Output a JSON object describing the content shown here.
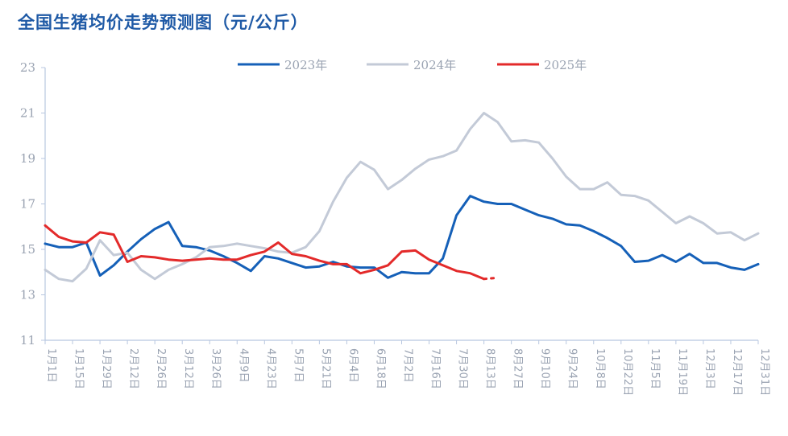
{
  "chart_data": {
    "type": "line",
    "title": "全国生猪均价走势预测图（元/公斤）",
    "ylim": [
      11,
      23
    ],
    "y_ticks": [
      11,
      13,
      15,
      17,
      19,
      21,
      23
    ],
    "legend_position": "top-center",
    "grid": false,
    "x_tick_labels": [
      "1月1日",
      "1月15日",
      "1月29日",
      "2月12日",
      "2月26日",
      "3月12日",
      "3月26日",
      "4月9日",
      "4月23日",
      "5月7日",
      "5月21日",
      "6月4日",
      "6月18日",
      "7月2日",
      "7月16日",
      "7月30日",
      "8月13日",
      "8月27日",
      "9月10日",
      "9月24日",
      "10月8日",
      "10月22日",
      "11月5日",
      "11月19日",
      "12月3日",
      "12月17日",
      "12月31日"
    ],
    "x_points": 53,
    "series": [
      {
        "name": "2023年",
        "color": "#1560b8",
        "values": [
          15.25,
          15.1,
          15.1,
          15.3,
          13.85,
          14.3,
          14.9,
          15.45,
          15.9,
          16.2,
          15.15,
          15.1,
          14.95,
          14.7,
          14.4,
          14.05,
          14.7,
          14.6,
          14.4,
          14.2,
          14.25,
          14.45,
          14.25,
          14.2,
          14.2,
          13.75,
          14.0,
          13.95,
          13.95,
          14.6,
          16.5,
          17.35,
          17.1,
          17.0,
          17.0,
          16.75,
          16.5,
          16.35,
          16.1,
          16.05,
          15.8,
          15.5,
          15.15,
          14.45,
          14.5,
          14.75,
          14.45,
          14.8,
          14.4,
          14.4,
          14.2,
          14.1,
          14.35
        ]
      },
      {
        "name": "2024年",
        "color": "#c3cad7",
        "values": [
          14.1,
          13.7,
          13.6,
          14.15,
          15.4,
          14.75,
          14.85,
          14.1,
          13.7,
          14.1,
          14.35,
          14.65,
          15.1,
          15.15,
          15.25,
          15.15,
          15.05,
          14.9,
          14.85,
          15.1,
          15.8,
          17.1,
          18.15,
          18.85,
          18.5,
          17.65,
          18.05,
          18.55,
          18.95,
          19.1,
          19.35,
          20.3,
          21.0,
          20.6,
          19.75,
          19.8,
          19.7,
          19.0,
          18.2,
          17.65,
          17.65,
          17.95,
          17.4,
          17.35,
          17.15,
          16.65,
          16.15,
          16.45,
          16.15,
          15.7,
          15.75,
          15.4,
          15.7
        ]
      },
      {
        "name": "2025年",
        "color": "#e32a2a",
        "values": [
          16.05,
          15.55,
          15.35,
          15.3,
          15.75,
          15.65,
          14.45,
          14.7,
          14.65,
          14.55,
          14.5,
          14.55,
          14.6,
          14.55,
          14.55,
          14.75,
          14.9,
          15.3,
          14.8,
          14.7,
          14.5,
          14.35,
          14.35,
          13.95,
          14.1,
          14.3,
          14.9,
          14.95,
          14.55,
          14.3,
          14.05,
          13.95,
          13.7
        ],
        "forecast_values": [
          13.7,
          13.75
        ]
      }
    ]
  }
}
